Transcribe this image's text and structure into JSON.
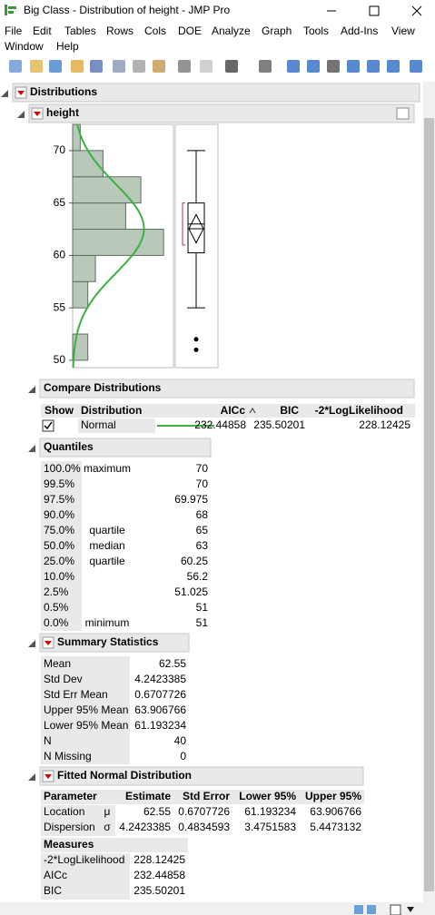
{
  "window": {
    "title": "Big Class - Distribution of height - JMP Pro"
  },
  "menu": [
    "File",
    "Edit",
    "Tables",
    "Rows",
    "Cols",
    "DOE",
    "Analyze",
    "Graph",
    "Tools",
    "Add-Ins",
    "View",
    "Window",
    "Help"
  ],
  "report": {
    "title": "Distributions",
    "variable": "height"
  },
  "chart_data": {
    "type": "histogram",
    "bins": [
      50,
      52.5,
      55,
      57.5,
      60,
      62.5,
      65,
      67.5,
      70,
      72.5
    ],
    "counts": [
      2,
      0,
      2,
      3,
      12,
      7,
      9,
      4,
      1
    ],
    "color": "#b9c9b9",
    "ylim": [
      49.3,
      72.5
    ],
    "yticks": [
      50,
      55,
      60,
      65,
      70
    ],
    "xlim": [
      0,
      13.3
    ],
    "box": {
      "whisker_low": 55,
      "q1": 60.25,
      "median": 63,
      "q3": 65,
      "whisker_high": 70,
      "outliers": [
        51,
        52
      ],
      "mean": 62.55,
      "mean_ci": [
        61.193234,
        63.906766
      ],
      "shortest_half": [
        61,
        65
      ]
    },
    "normal": {
      "mean": 62.55,
      "sd": 4.2423385,
      "color": "#3cb043"
    }
  },
  "compare": {
    "title": "Compare Distributions",
    "headers": [
      "Show",
      "Distribution",
      "AICc",
      "BIC",
      "-2*LogLikelihood"
    ],
    "rows": [
      [
        "Normal",
        "232.44858",
        "235.50201",
        "228.12425"
      ]
    ]
  },
  "quantiles": {
    "title": "Quantiles",
    "rows": [
      {
        "pct": "100.0%",
        "label": "maximum",
        "value": "70"
      },
      {
        "pct": "99.5%",
        "value": "70"
      },
      {
        "pct": "97.5%",
        "value": "69.975"
      },
      {
        "pct": "90.0%",
        "value": "68"
      },
      {
        "pct": "75.0%",
        "label": "quartile",
        "value": "65"
      },
      {
        "pct": "50.0%",
        "label": "median",
        "value": "63"
      },
      {
        "pct": "25.0%",
        "label": "quartile",
        "value": "60.25"
      },
      {
        "pct": "10.0%",
        "value": "56.2"
      },
      {
        "pct": "2.5%",
        "value": "51.025"
      },
      {
        "pct": "0.5%",
        "value": "51"
      },
      {
        "pct": "0.0%",
        "label": "minimum",
        "value": "51"
      }
    ]
  },
  "summary": {
    "title": "Summary Statistics",
    "rows": [
      [
        "Mean",
        "62.55"
      ],
      [
        "Std Dev",
        "4.2423385"
      ],
      [
        "Std Err Mean",
        "0.6707726"
      ],
      [
        "Upper 95% Mean",
        "63.906766"
      ],
      [
        "Lower 95% Mean",
        "61.193234"
      ],
      [
        "N",
        "40"
      ],
      [
        "N Missing",
        "0"
      ]
    ]
  },
  "fitted": {
    "title": "Fitted Normal Distribution",
    "headers": [
      "Parameter",
      "Estimate",
      "Std Error",
      "Lower 95%",
      "Upper 95%"
    ],
    "rows": [
      [
        "Location",
        "μ",
        "62.55",
        "0.6707726",
        "61.193234",
        "63.906766"
      ],
      [
        "Dispersion",
        "σ",
        "4.2423385",
        "0.4834593",
        "3.4751583",
        "5.4473132"
      ]
    ],
    "measures_title": "Measures",
    "measures": [
      [
        "-2*LogLikelihood",
        "228.12425"
      ],
      [
        "AICc",
        "232.44858"
      ],
      [
        "BIC",
        "235.50201"
      ]
    ]
  }
}
